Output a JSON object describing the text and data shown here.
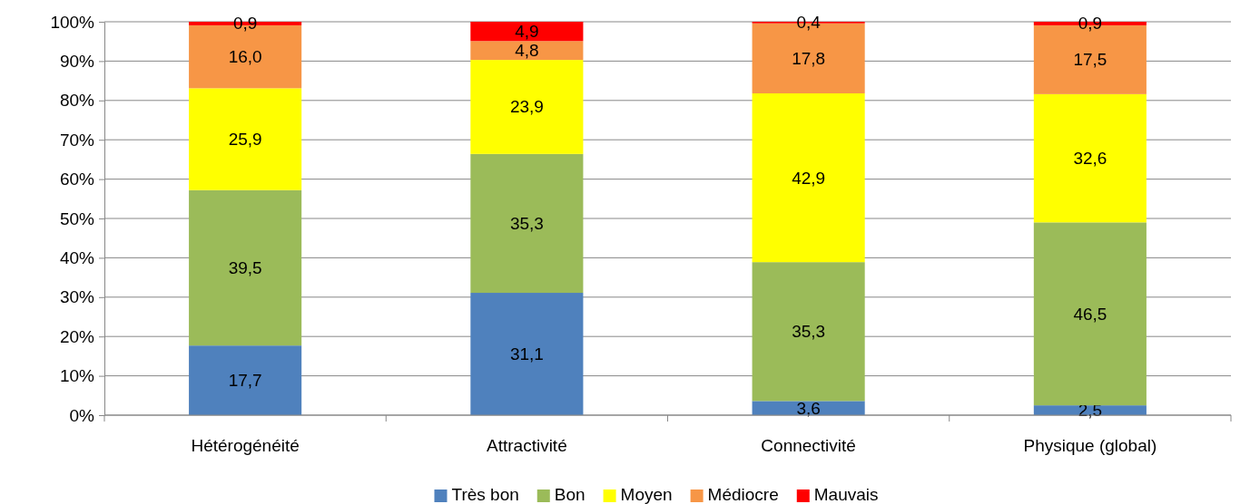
{
  "chart_data": {
    "type": "bar",
    "stacked": true,
    "categories": [
      "Hétérogénéité",
      "Attractivité",
      "Connectivité",
      "Physique (global)"
    ],
    "series": [
      {
        "name": "Très bon",
        "color": "#4f81bd",
        "values": [
          17.7,
          31.1,
          3.6,
          2.5
        ],
        "value_labels": [
          "17,7",
          "31,1",
          "3,6",
          "2,5"
        ]
      },
      {
        "name": "Bon",
        "color": "#9bbb59",
        "values": [
          39.5,
          35.3,
          35.3,
          46.5
        ],
        "value_labels": [
          "39,5",
          "35,3",
          "35,3",
          "46,5"
        ]
      },
      {
        "name": "Moyen",
        "color": "#ffff00",
        "values": [
          25.9,
          23.9,
          42.9,
          32.6
        ],
        "value_labels": [
          "25,9",
          "23,9",
          "42,9",
          "32,6"
        ]
      },
      {
        "name": "Médiocre",
        "color": "#f79646",
        "values": [
          16.0,
          4.8,
          17.8,
          17.5
        ],
        "value_labels": [
          "16,0",
          "4,8",
          "17,8",
          "17,5"
        ]
      },
      {
        "name": "Mauvais",
        "color": "#ff0000",
        "values": [
          0.9,
          4.9,
          0.4,
          0.9
        ],
        "value_labels": [
          "0,9",
          "4,9",
          "0,4",
          "0,9"
        ]
      }
    ],
    "ylim": [
      0,
      100
    ],
    "yticks": [
      {
        "value": 0,
        "label": "0%"
      },
      {
        "value": 10,
        "label": "10%"
      },
      {
        "value": 20,
        "label": "20%"
      },
      {
        "value": 30,
        "label": "30%"
      },
      {
        "value": 40,
        "label": "40%"
      },
      {
        "value": 50,
        "label": "50%"
      },
      {
        "value": 60,
        "label": "60%"
      },
      {
        "value": 70,
        "label": "70%"
      },
      {
        "value": 80,
        "label": "80%"
      },
      {
        "value": 90,
        "label": "90%"
      },
      {
        "value": 100,
        "label": "100%"
      }
    ],
    "grid": "y",
    "legend": "bottom"
  }
}
